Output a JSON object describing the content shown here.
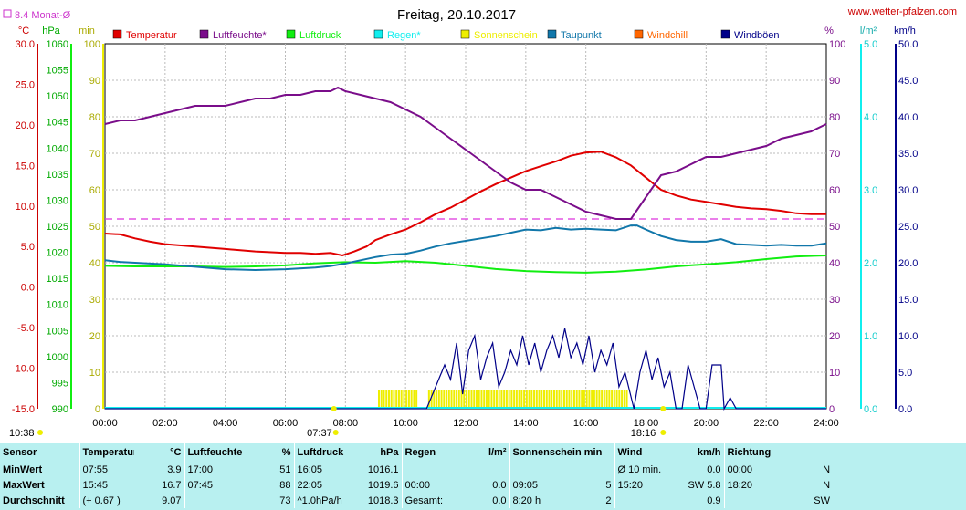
{
  "title": "Freitag, 20.10.2017",
  "site": "www.wetter-pfalzen.com",
  "month_avg_label": "8.4 Monat-Ø",
  "axis_units": {
    "temp": "°C",
    "pressure": "hPa",
    "sun": "min",
    "humidity": "%",
    "rain": "l/m²",
    "wind": "km/h"
  },
  "colors": {
    "temperature": "#e00000",
    "humidity": "#7a0d8a",
    "pressure": "#11ee11",
    "rain": "#11eeee",
    "sunshine": "#eeee00",
    "dewpoint": "#1177aa",
    "windchill": "#ff6600",
    "gusts": "#000088",
    "month_avg": "#dd33dd",
    "stats_bg": "#b8f0f0"
  },
  "legend": [
    {
      "label": "Temperatur",
      "color": "#e00000"
    },
    {
      "label": "Luftfeuchte*",
      "color": "#7a0d8a"
    },
    {
      "label": "Luftdruck",
      "color": "#11ee11"
    },
    {
      "label": "Regen*",
      "color": "#11eeee"
    },
    {
      "label": "Sonnenschein",
      "color": "#eeee00"
    },
    {
      "label": "Taupunkt",
      "color": "#1177aa"
    },
    {
      "label": "Windchill",
      "color": "#ff6600"
    },
    {
      "label": "Windböen",
      "color": "#000088"
    }
  ],
  "sun_markers": {
    "sunrise": "07:37",
    "sunset": "18:16",
    "daylength": "10:38"
  },
  "chart_data": {
    "type": "line",
    "title": "Freitag, 20.10.2017",
    "x_ticks": [
      "00:00",
      "02:00",
      "04:00",
      "06:00",
      "08:00",
      "10:00",
      "12:00",
      "14:00",
      "16:00",
      "18:00",
      "20:00",
      "22:00",
      "24:00"
    ],
    "axes": {
      "temp": {
        "range": [
          -15,
          30
        ],
        "ticks": [
          "30.0",
          "25.0",
          "20.0",
          "15.0",
          "10.0",
          "5.0",
          "0.0",
          "-5.0",
          "-10.0",
          "-15.0"
        ]
      },
      "pressure": {
        "range": [
          990,
          1060
        ],
        "ticks": [
          "1060",
          "1055",
          "1050",
          "1045",
          "1040",
          "1035",
          "1030",
          "1025",
          "1020",
          "1015",
          "1010",
          "1005",
          "1000",
          "995",
          "990"
        ]
      },
      "sun": {
        "range": [
          0,
          100
        ],
        "ticks": [
          "100",
          "90",
          "80",
          "70",
          "60",
          "50",
          "40",
          "30",
          "20",
          "10",
          "0"
        ]
      },
      "humidity": {
        "range": [
          0,
          100
        ],
        "ticks": [
          "100",
          "90",
          "80",
          "70",
          "60",
          "50",
          "40",
          "30",
          "20",
          "10",
          "0"
        ]
      },
      "rain": {
        "range": [
          0,
          5
        ],
        "ticks": [
          "5.0",
          "4.0",
          "3.0",
          "2.0",
          "1.0",
          "0.0"
        ]
      },
      "wind": {
        "range": [
          0,
          50
        ],
        "ticks": [
          "50.0",
          "45.0",
          "40.0",
          "35.0",
          "30.0",
          "25.0",
          "20.0",
          "15.0",
          "10.0",
          "5.0",
          "0.0"
        ]
      }
    },
    "month_avg_temp": 8.4,
    "series": [
      {
        "name": "Temperatur",
        "axis": "temp",
        "x": [
          0,
          0.5,
          1,
          1.5,
          2,
          3,
          4,
          5,
          6,
          6.5,
          7,
          7.5,
          7.9,
          8.3,
          8.7,
          9,
          9.5,
          10,
          10.5,
          11,
          11.5,
          12,
          12.5,
          13,
          13.5,
          14,
          14.5,
          15,
          15.5,
          16,
          16.5,
          17,
          17.5,
          18,
          18.5,
          19,
          19.5,
          20,
          20.5,
          21,
          21.5,
          22,
          22.5,
          23,
          23.5,
          24
        ],
        "values": [
          6.6,
          6.5,
          6.0,
          5.6,
          5.3,
          5.0,
          4.7,
          4.4,
          4.2,
          4.2,
          4.1,
          4.2,
          3.9,
          4.4,
          5.0,
          5.8,
          6.5,
          7.1,
          8.0,
          9.0,
          9.8,
          10.8,
          11.8,
          12.7,
          13.5,
          14.3,
          14.9,
          15.5,
          16.2,
          16.6,
          16.7,
          16.0,
          15.0,
          13.5,
          12.0,
          11.3,
          10.8,
          10.5,
          10.2,
          9.9,
          9.7,
          9.6,
          9.4,
          9.1,
          9.0,
          9.0
        ]
      },
      {
        "name": "Luftfeuchte*",
        "axis": "humidity",
        "x": [
          0,
          0.5,
          1,
          1.5,
          2,
          2.5,
          3,
          3.5,
          4,
          4.5,
          5,
          5.5,
          6,
          6.5,
          7,
          7.5,
          7.75,
          8,
          8.5,
          9,
          9.5,
          10,
          10.5,
          11,
          11.5,
          12,
          12.5,
          13,
          13.5,
          14,
          14.5,
          15,
          15.5,
          16,
          16.5,
          17,
          17.5,
          18,
          18.5,
          19,
          19.5,
          20,
          20.5,
          21,
          21.5,
          22,
          22.5,
          23,
          23.5,
          24
        ],
        "values": [
          78,
          79,
          79,
          80,
          81,
          82,
          83,
          83,
          83,
          84,
          85,
          85,
          86,
          86,
          87,
          87,
          88,
          87,
          86,
          85,
          84,
          82,
          80,
          77,
          74,
          71,
          68,
          65,
          62,
          60,
          60,
          58,
          56,
          54,
          53,
          52,
          52,
          58,
          64,
          65,
          67,
          69,
          69,
          70,
          71,
          72,
          74,
          75,
          76,
          78
        ]
      },
      {
        "name": "Luftdruck",
        "axis": "pressure",
        "x": [
          0,
          1,
          2,
          3,
          4,
          5,
          6,
          7,
          8,
          9,
          10,
          11,
          12,
          13,
          14,
          15,
          16,
          17,
          18,
          19,
          20,
          21,
          22,
          23,
          24
        ],
        "values": [
          1017.4,
          1017.3,
          1017.3,
          1017.3,
          1017.2,
          1017.3,
          1017.5,
          1017.9,
          1018.1,
          1018.0,
          1018.3,
          1018.0,
          1017.4,
          1016.8,
          1016.4,
          1016.2,
          1016.1,
          1016.3,
          1016.7,
          1017.3,
          1017.7,
          1018.1,
          1018.7,
          1019.2,
          1019.4
        ]
      },
      {
        "name": "Taupunkt",
        "axis": "temp",
        "x": [
          0,
          0.5,
          1,
          1.5,
          2,
          3,
          4,
          5,
          6,
          7,
          7.5,
          8,
          8.5,
          9,
          9.5,
          10,
          10.5,
          11,
          11.5,
          12,
          12.5,
          13,
          13.5,
          14,
          14.5,
          15,
          15.5,
          16,
          16.5,
          17,
          17.5,
          17.7,
          18,
          18.5,
          19,
          19.5,
          20,
          20.5,
          21,
          21.5,
          22,
          22.5,
          23,
          23.5,
          24
        ],
        "values": [
          3.3,
          3.1,
          3.0,
          2.9,
          2.8,
          2.5,
          2.2,
          2.1,
          2.2,
          2.4,
          2.6,
          2.9,
          3.3,
          3.7,
          4.0,
          4.1,
          4.5,
          5.0,
          5.4,
          5.7,
          6.0,
          6.3,
          6.7,
          7.1,
          7.0,
          7.3,
          7.1,
          7.2,
          7.1,
          7.0,
          7.6,
          7.6,
          7.1,
          6.3,
          5.8,
          5.6,
          5.6,
          5.9,
          5.3,
          5.2,
          5.1,
          5.2,
          5.1,
          5.1,
          5.4
        ]
      },
      {
        "name": "Windböen",
        "axis": "wind",
        "x": [
          0,
          10.7,
          11,
          11.3,
          11.5,
          11.7,
          11.9,
          12.1,
          12.3,
          12.5,
          12.7,
          12.9,
          13.1,
          13.3,
          13.5,
          13.7,
          13.9,
          14.1,
          14.3,
          14.5,
          14.7,
          14.9,
          15.1,
          15.3,
          15.5,
          15.7,
          15.9,
          16.1,
          16.3,
          16.5,
          16.7,
          16.9,
          17.1,
          17.3,
          17.6,
          17.8,
          18.0,
          18.2,
          18.4,
          18.6,
          18.8,
          19.0,
          19.2,
          19.4,
          19.6,
          19.8,
          20.0,
          20.2,
          20.5,
          20.6,
          20.8,
          21.0,
          24
        ],
        "values": [
          0,
          0,
          3,
          6,
          4,
          9,
          2,
          8,
          10,
          4,
          7,
          9,
          3,
          5,
          8,
          6,
          10,
          6,
          9,
          5,
          8,
          10,
          7,
          11,
          7,
          9,
          6,
          10,
          5,
          8,
          6,
          9,
          3,
          5,
          0,
          5,
          8,
          4,
          7,
          3,
          5,
          0,
          0,
          6,
          3,
          0,
          0,
          6,
          6,
          0,
          1.5,
          0,
          0
        ]
      }
    ],
    "sunshine": {
      "axis": "sun",
      "from": "09:05",
      "to": "17:25",
      "gap": [
        "10:25",
        "10:45"
      ]
    },
    "rain_total": 0.0
  },
  "stats": {
    "headers": [
      "Sensor",
      "Temperatur",
      "°C",
      "Luftfeuchte",
      "%",
      "Luftdruck",
      "hPa",
      "Regen",
      "l/m²",
      "Sonnenschein min",
      "Wind",
      "km/h",
      "Richtung"
    ],
    "min": {
      "label": "MinWert",
      "t_time": "07:55",
      "t_val": "3.9",
      "h_time": "17:00",
      "h_val": "51",
      "p_time": "16:05",
      "p_val": "1016.1",
      "r_time": "",
      "r_val": "",
      "s_time": "",
      "s_val": "",
      "w_time": "Ø 10 min.",
      "w_val": "0.0",
      "d_time": "00:00",
      "d_val": "N"
    },
    "max": {
      "label": "MaxWert",
      "t_time": "15:45",
      "t_val": "16.7",
      "h_time": "07:45",
      "h_val": "88",
      "p_time": "22:05",
      "p_val": "1019.6",
      "r_time": "00:00",
      "r_val": "0.0",
      "s_time": "09:05",
      "s_val": "5",
      "w_time": "15:20",
      "w_val": "SW 5.8",
      "d_time": "18:20",
      "d_val": "N"
    },
    "avg": {
      "label": "Durchschnitt",
      "t_time": "(+ 0.67 )",
      "t_val": "9.07",
      "h_time": "",
      "h_val": "73",
      "p_time": "^1.0hPa/h",
      "p_val": "1018.3",
      "r_time": "Gesamt:",
      "r_val": "0.0",
      "s_time": "8:20 h",
      "s_val": "2",
      "w_time": "",
      "w_val": "0.9",
      "d_time": "",
      "d_val": "SW"
    }
  }
}
